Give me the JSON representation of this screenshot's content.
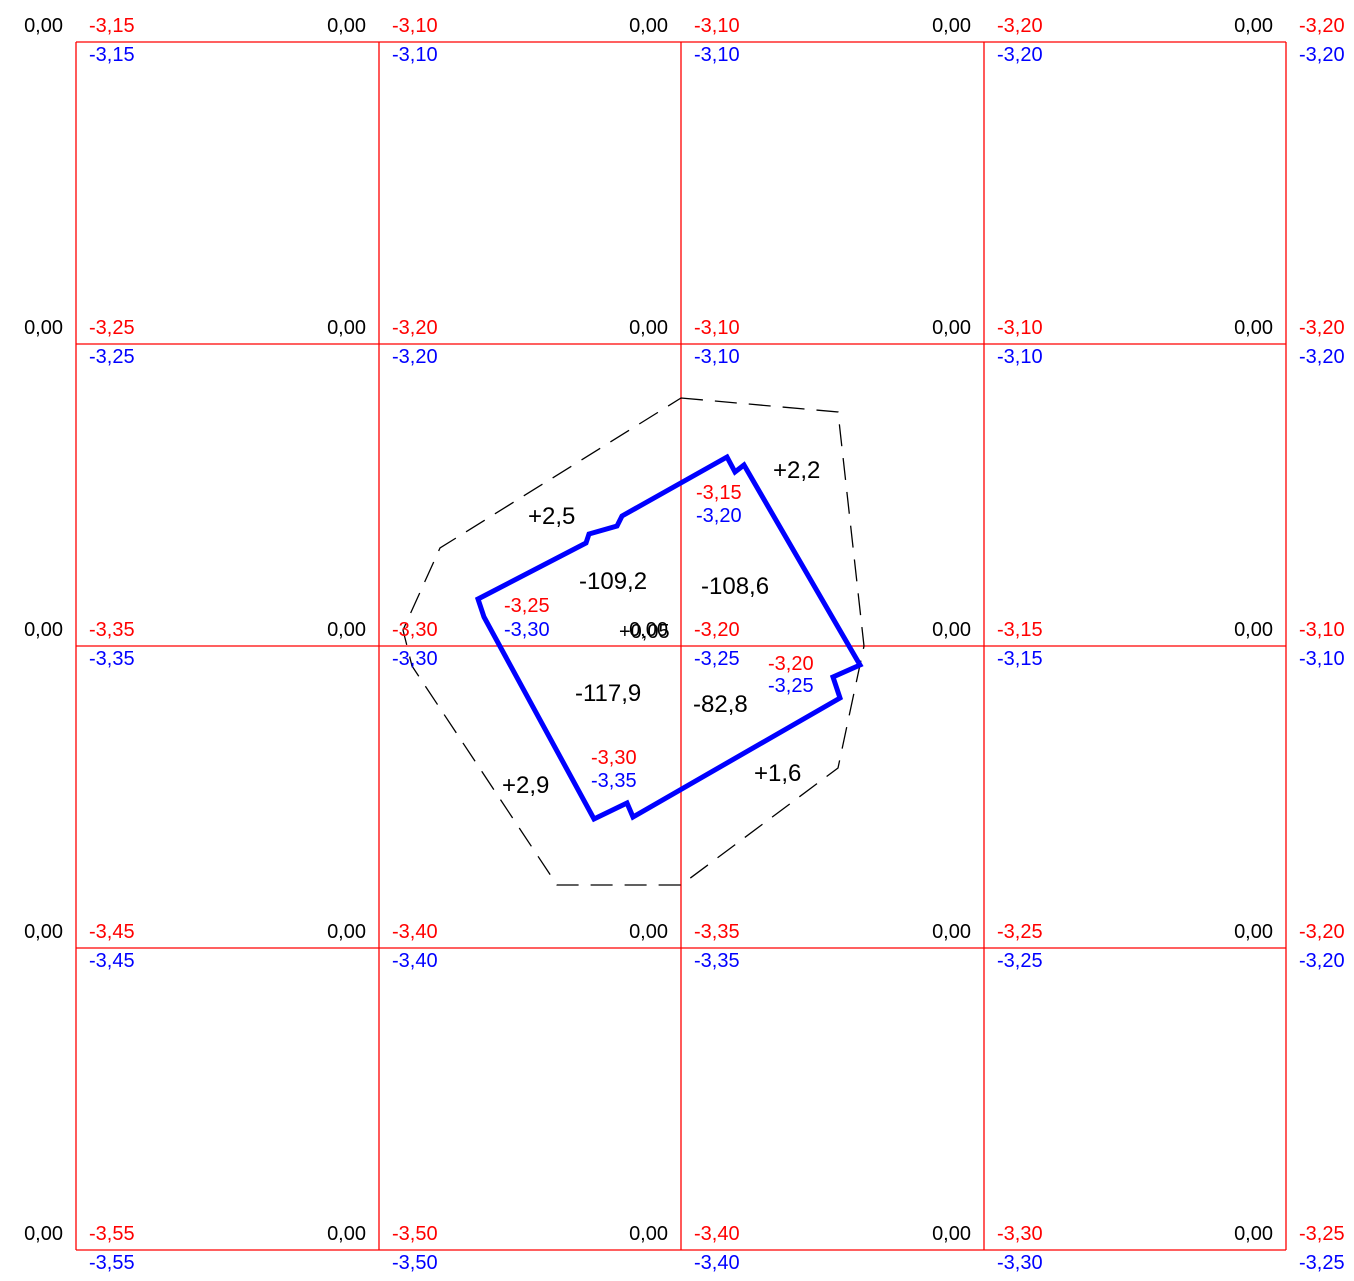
{
  "colors": {
    "grid": "#ff0000",
    "red_label": "#ff0000",
    "blue_label": "#0000ff",
    "building": "#0000ff",
    "contour": "#000000",
    "text": "#000000"
  },
  "grid": {
    "rows": [
      {
        "black": [
          "0,00",
          "0,00",
          "0,00",
          "0,00",
          "0,00"
        ],
        "red": [
          "-3,15",
          "-3,10",
          "-3,10",
          "-3,20",
          "-3,20"
        ],
        "blue": [
          "-3,15",
          "-3,10",
          "-3,10",
          "-3,20",
          "-3,20"
        ]
      },
      {
        "black": [
          "0,00",
          "0,00",
          "0,00",
          "0,00",
          "0,00"
        ],
        "red": [
          "-3,25",
          "-3,20",
          "-3,10",
          "-3,10",
          "-3,20"
        ],
        "blue": [
          "-3,25",
          "-3,20",
          "-3,10",
          "-3,10",
          "-3,20"
        ]
      },
      {
        "black": [
          "0,00",
          "0,00",
          "0,00",
          "0,00",
          "0,00"
        ],
        "red": [
          "-3,35",
          "-3,30",
          "-3,20",
          "-3,15",
          "-3,10"
        ],
        "blue": [
          "-3,35",
          "-3,30",
          "-3,25",
          "-3,15",
          "-3,10"
        ]
      },
      {
        "black": [
          "0,00",
          "0,00",
          "0,00",
          "0,00",
          "0,00"
        ],
        "red": [
          "-3,45",
          "-3,40",
          "-3,35",
          "-3,25",
          "-3,20"
        ],
        "blue": [
          "-3,45",
          "-3,40",
          "-3,35",
          "-3,25",
          "-3,20"
        ]
      },
      {
        "black": [
          "0,00",
          "0,00",
          "0,00",
          "0,00",
          "0,00"
        ],
        "red": [
          "-3,55",
          "-3,50",
          "-3,40",
          "-3,30",
          "-3,25"
        ],
        "blue": [
          "-3,55",
          "-3,50",
          "-3,40",
          "-3,30",
          "-3,25"
        ]
      }
    ]
  },
  "building_labels": {
    "north_red": "-3,15",
    "north_blue": "-3,20",
    "west_red": "-3,25",
    "west_blue": "-3,30",
    "east_red": "-3,20",
    "east_blue": "-3,25",
    "south_red": "-3,30",
    "south_blue": "-3,35",
    "center": "+0,05"
  },
  "volumes": {
    "cut_nw": "-109,2",
    "cut_ne": "-108,6",
    "cut_sw": "-117,9",
    "cut_se": "-82,8",
    "fill_nw": "+2,5",
    "fill_ne": "+2,2",
    "fill_sw": "+2,9",
    "fill_se": "+1,6"
  }
}
